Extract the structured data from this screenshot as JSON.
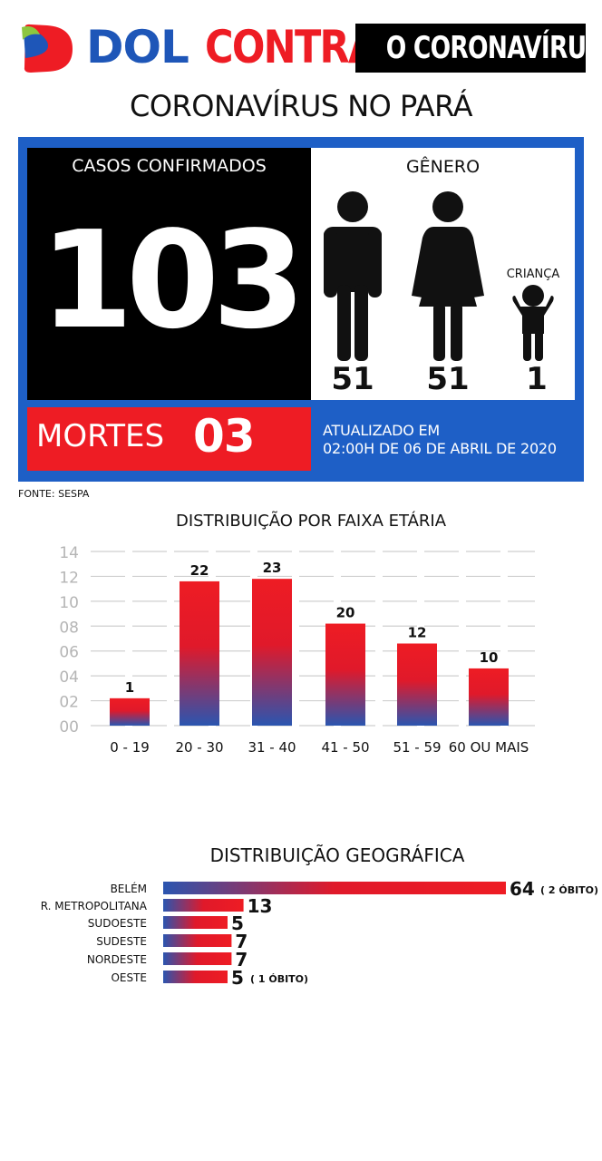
{
  "header": {
    "brand_dol": "DOL",
    "brand_contra": "CONTRA",
    "brand_tagline": "O CORONAVÍRUS",
    "title": "CORONAVÍRUS NO PARÁ"
  },
  "summary": {
    "cases_label": "CASOS CONFIRMADOS",
    "cases_value": "103",
    "gender_label": "GÊNERO",
    "men_count": "51",
    "women_count": "51",
    "child_label": "CRIANÇA",
    "child_count": "1",
    "deaths_label": "MORTES",
    "deaths_value": "03",
    "updated_line1": "ATUALIZADO EM",
    "updated_line2": "02:00H DE 06 DE ABRIL DE 2020",
    "source": "FONTE: SESPA"
  },
  "colors": {
    "red": "#ee1c24",
    "blue": "#1e56b8",
    "panel_blue": "#1e5fc6",
    "black": "#000000"
  },
  "icons": [
    "logo-mark-icon",
    "man-icon",
    "woman-icon",
    "child-icon"
  ],
  "chart_data": [
    {
      "type": "bar",
      "title": "DISTRIBUIÇÃO POR FAIXA ETÁRIA",
      "categories": [
        "0 - 19",
        "20 - 30",
        "31 - 40",
        "41 - 50",
        "51 - 59",
        "60 OU MAIS"
      ],
      "values": [
        1,
        22,
        23,
        20,
        12,
        10
      ],
      "data_labels": [
        "1",
        "22",
        "23",
        "20",
        "12",
        "10"
      ],
      "bar_heights_on_axis": [
        2.2,
        11.6,
        11.8,
        8.2,
        6.6,
        4.6
      ],
      "y_tick_labels": [
        "00",
        "02",
        "04",
        "06",
        "08",
        "10",
        "12",
        "14"
      ],
      "ylim": [
        0,
        14
      ],
      "grid": true,
      "legend": "none"
    },
    {
      "type": "bar",
      "orientation": "horizontal",
      "title": "DISTRIBUIÇÃO GEOGRÁFICA",
      "categories": [
        "BELÉM",
        "R. METROPOLITANA",
        "SUDOESTE",
        "SUDESTE",
        "NORDESTE",
        "OESTE"
      ],
      "values": [
        64,
        13,
        5,
        7,
        7,
        5
      ],
      "data_labels": [
        "64",
        "13",
        "5",
        "7",
        "7",
        "5"
      ],
      "annotations": [
        "( 2 ÓBITO)",
        "",
        "",
        "",
        "",
        "( 1 ÓBITO)"
      ],
      "grid": false,
      "legend": "none"
    }
  ]
}
